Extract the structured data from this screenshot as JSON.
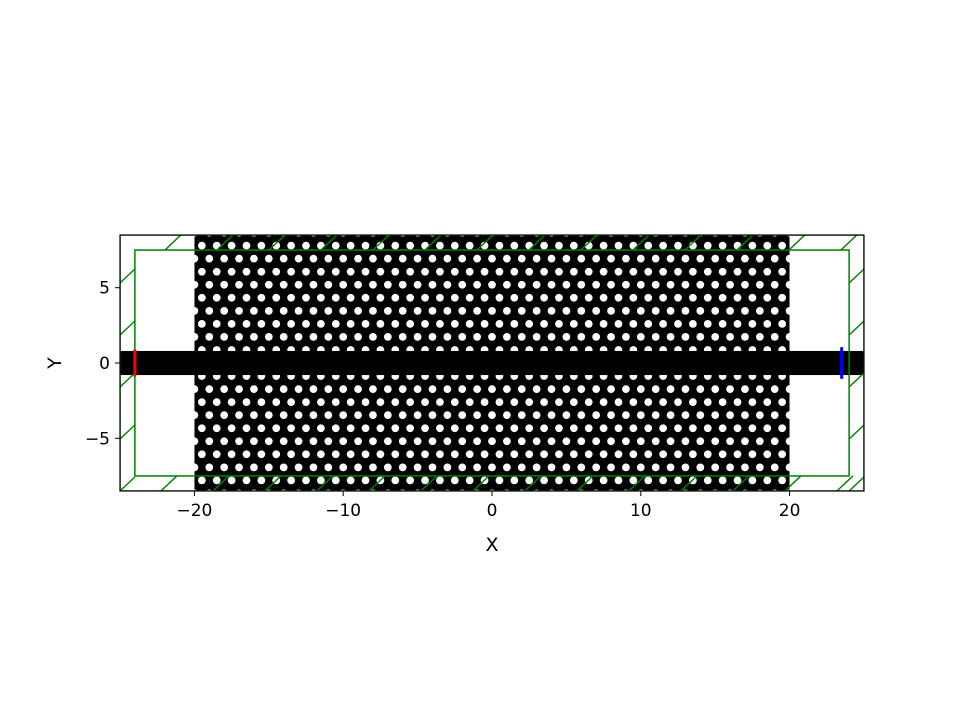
{
  "chart_data": {
    "type": "diagram",
    "title": "",
    "xlabel": "X",
    "ylabel": "Y",
    "xlim": [
      -25,
      25
    ],
    "ylim": [
      -8.5,
      8.5
    ],
    "x_ticks": [
      {
        "value": -20,
        "label": "−20"
      },
      {
        "value": -10,
        "label": "−10"
      },
      {
        "value": 0,
        "label": "0"
      },
      {
        "value": 10,
        "label": "10"
      },
      {
        "value": 20,
        "label": "20"
      }
    ],
    "y_ticks": [
      {
        "value": 5,
        "label": "5"
      },
      {
        "value": 0,
        "label": "0"
      },
      {
        "value": -5,
        "label": "−5"
      }
    ],
    "crystal": {
      "x_range": [
        -20,
        20
      ],
      "y_range": [
        -8.5,
        8.5
      ],
      "row_spacing": 0.866,
      "hole_pitch": 1.0,
      "hole_radius": 0.26,
      "defect_row_y": 0
    },
    "waveguide": {
      "half_width": 0.8,
      "x_range": [
        -25,
        25
      ]
    },
    "pml": {
      "thickness": 1.0,
      "color": "#008000"
    },
    "source": {
      "x": -24,
      "y_range": [
        -0.9,
        0.9
      ],
      "color": "#ff0000"
    },
    "monitor": {
      "x": 23.5,
      "y_range": [
        -1.05,
        1.05
      ],
      "color": "#0000ff"
    }
  }
}
